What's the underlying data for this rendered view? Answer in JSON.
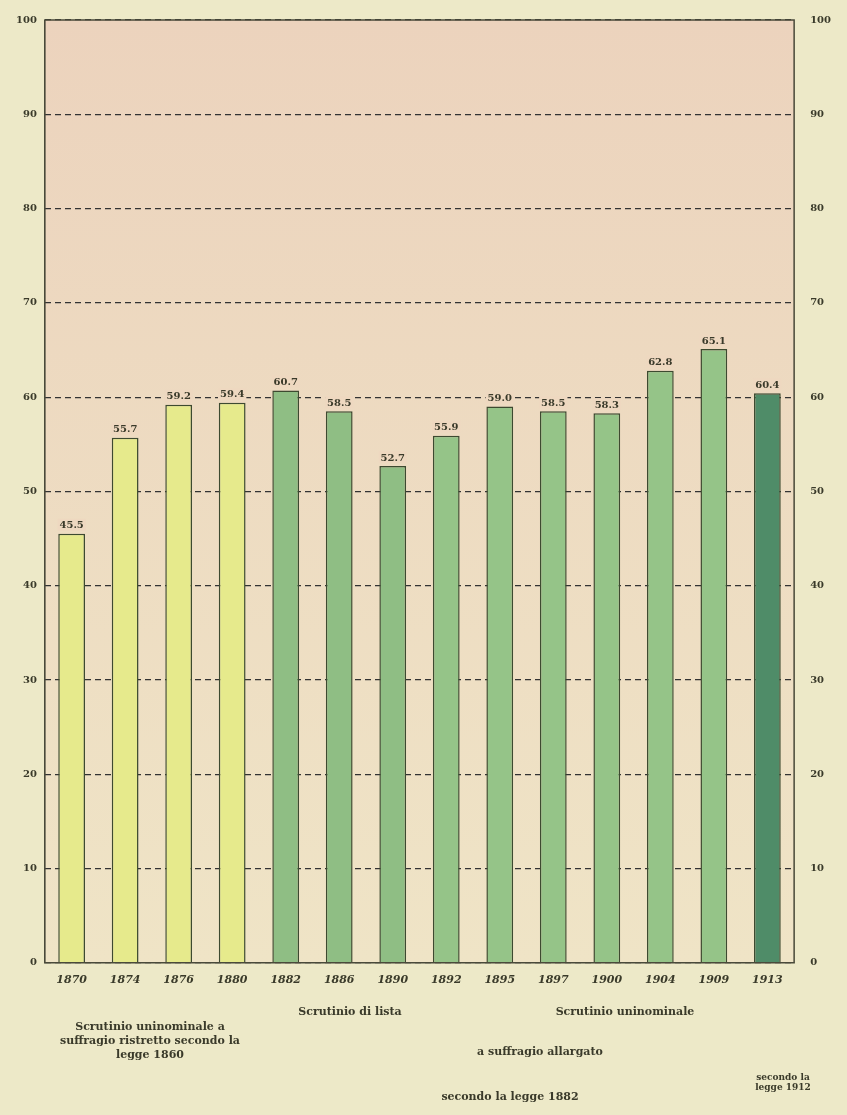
{
  "chart_data": {
    "type": "bar",
    "categories": [
      "1870",
      "1874",
      "1876",
      "1880",
      "1882",
      "1886",
      "1890",
      "1892",
      "1895",
      "1897",
      "1900",
      "1904",
      "1909",
      "1913"
    ],
    "values": [
      45.5,
      55.7,
      59.2,
      59.4,
      60.7,
      58.5,
      52.7,
      55.9,
      59.0,
      58.5,
      58.3,
      62.8,
      65.1,
      60.4
    ],
    "colors": [
      "#e6ea8c",
      "#e6ea8c",
      "#e6ea8c",
      "#e6ea8c",
      "#8fbe84",
      "#8fbe84",
      "#8fbe84",
      "#95c488",
      "#95c488",
      "#95c488",
      "#95c488",
      "#95c488",
      "#95c488",
      "#4f8c68"
    ],
    "ylim": [
      0,
      100
    ],
    "yticks": [
      0,
      10,
      20,
      30,
      40,
      50,
      60,
      70,
      80,
      90,
      100
    ],
    "y2lim": [
      0,
      100
    ],
    "y2ticks": [
      0,
      10,
      20,
      30,
      40,
      50,
      60,
      70,
      80,
      90,
      100
    ],
    "value_labels": [
      "45.5",
      "55.7",
      "59.2",
      "59.4",
      "60.7",
      "58.5",
      "52.7",
      "55.9",
      "59.0",
      "58.5",
      "58.3",
      "62.8",
      "65.1",
      "60.4"
    ],
    "grid": "y",
    "line_style": "dashed",
    "legend": false,
    "annotations": [
      "Scrutinio uninominale a suffragio ristretto secondo la legge 1860",
      "Scrutinio di lista",
      "Scrutinio uninominale",
      "a suffragio allargato",
      "secondo la legge 1882",
      "secondo la legge 1912"
    ]
  }
}
